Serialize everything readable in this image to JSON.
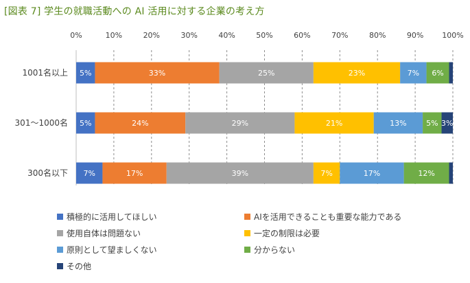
{
  "chart_data": {
    "type": "bar",
    "orientation": "horizontal",
    "stacked": "percent",
    "title": "[図表 7] 学生の就職活動への AI 活用に対する企業の考え方",
    "categories": [
      "1001名以上",
      "301～1000名",
      "300名以下"
    ],
    "x_ticks": [
      "0%",
      "10%",
      "20%",
      "30%",
      "40%",
      "50%",
      "60%",
      "70%",
      "80%",
      "90%",
      "100%"
    ],
    "xlim": [
      0,
      100
    ],
    "grid": "vertical dashed",
    "legend_position": "bottom",
    "series": [
      {
        "name": "積極的に活用してほしい",
        "color": "#4472c4",
        "values": [
          5,
          5,
          7
        ],
        "labels": [
          "5%",
          "5%",
          "7%"
        ]
      },
      {
        "name": "AIを活用できることも重要な能力である",
        "color": "#ed7d31",
        "values": [
          33,
          24,
          17
        ],
        "labels": [
          "33%",
          "24%",
          "17%"
        ]
      },
      {
        "name": "使用自体は問題ない",
        "color": "#a5a5a5",
        "values": [
          25,
          29,
          39
        ],
        "labels": [
          "25%",
          "29%",
          "39%"
        ]
      },
      {
        "name": "一定の制限は必要",
        "color": "#ffc000",
        "values": [
          23,
          21,
          7
        ],
        "labels": [
          "23%",
          "21%",
          "7%"
        ]
      },
      {
        "name": "原則として望ましくない",
        "color": "#5b9bd5",
        "values": [
          7,
          13,
          17
        ],
        "labels": [
          "7%",
          "13%",
          "17%"
        ]
      },
      {
        "name": "分からない",
        "color": "#70ad47",
        "values": [
          6,
          5,
          12
        ],
        "labels": [
          "6%",
          "5%",
          "12%"
        ]
      },
      {
        "name": "その他",
        "color": "#264478",
        "values": [
          1,
          3,
          1
        ],
        "labels": [
          "",
          "3%",
          ""
        ]
      }
    ]
  }
}
